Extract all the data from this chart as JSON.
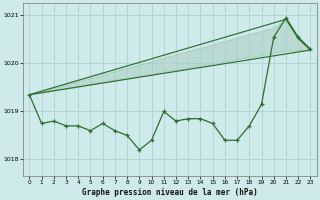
{
  "title": "Graphe pression niveau de la mer (hPa)",
  "bg_color": "#ceeaea",
  "grid_color": "#a8d0d0",
  "line_color": "#2d6e2d",
  "ylim": [
    1017.65,
    1021.25
  ],
  "yticks": [
    1018,
    1019,
    1020,
    1021
  ],
  "xlim": [
    -0.5,
    23.5
  ],
  "xticks": [
    0,
    1,
    2,
    3,
    4,
    5,
    6,
    7,
    8,
    9,
    10,
    11,
    12,
    13,
    14,
    15,
    16,
    17,
    18,
    19,
    20,
    21,
    22,
    23
  ],
  "main_data": [
    1019.35,
    1018.75,
    1018.8,
    1018.7,
    1018.7,
    1018.6,
    1018.75,
    1018.6,
    1018.5,
    1018.2,
    1018.4,
    1019.0,
    1018.8,
    1018.85,
    1018.85,
    1018.75,
    1018.4,
    1018.4,
    1018.7,
    1019.15,
    1020.55,
    1020.95,
    1020.55,
    1020.3
  ],
  "upper_line_x": [
    0,
    21,
    22,
    23
  ],
  "upper_line_y": [
    1019.35,
    1020.92,
    1020.52,
    1020.28
  ],
  "lower_line_x": [
    0,
    23
  ],
  "lower_line_y": [
    1019.35,
    1020.28
  ],
  "fill_upper_x": [
    0,
    1,
    2,
    3,
    4,
    5,
    6,
    7,
    8,
    9,
    10,
    11,
    12,
    13,
    14,
    15,
    16,
    17,
    18,
    19,
    20,
    21,
    22,
    23
  ],
  "fill_upper_y": [
    1019.35,
    1019.42,
    1019.49,
    1019.56,
    1019.63,
    1019.7,
    1019.77,
    1019.84,
    1019.91,
    1019.98,
    1020.05,
    1020.12,
    1020.19,
    1020.26,
    1020.33,
    1020.4,
    1020.47,
    1020.54,
    1020.61,
    1020.68,
    1020.75,
    1020.92,
    1020.52,
    1020.28
  ],
  "fill_lower_y": [
    1019.35,
    1019.39,
    1019.44,
    1019.48,
    1019.52,
    1019.57,
    1019.61,
    1019.65,
    1019.7,
    1019.74,
    1019.78,
    1019.83,
    1019.87,
    1019.91,
    1019.96,
    1020.0,
    1020.04,
    1020.09,
    1020.13,
    1020.17,
    1020.22,
    1020.26,
    1020.27,
    1020.28
  ]
}
